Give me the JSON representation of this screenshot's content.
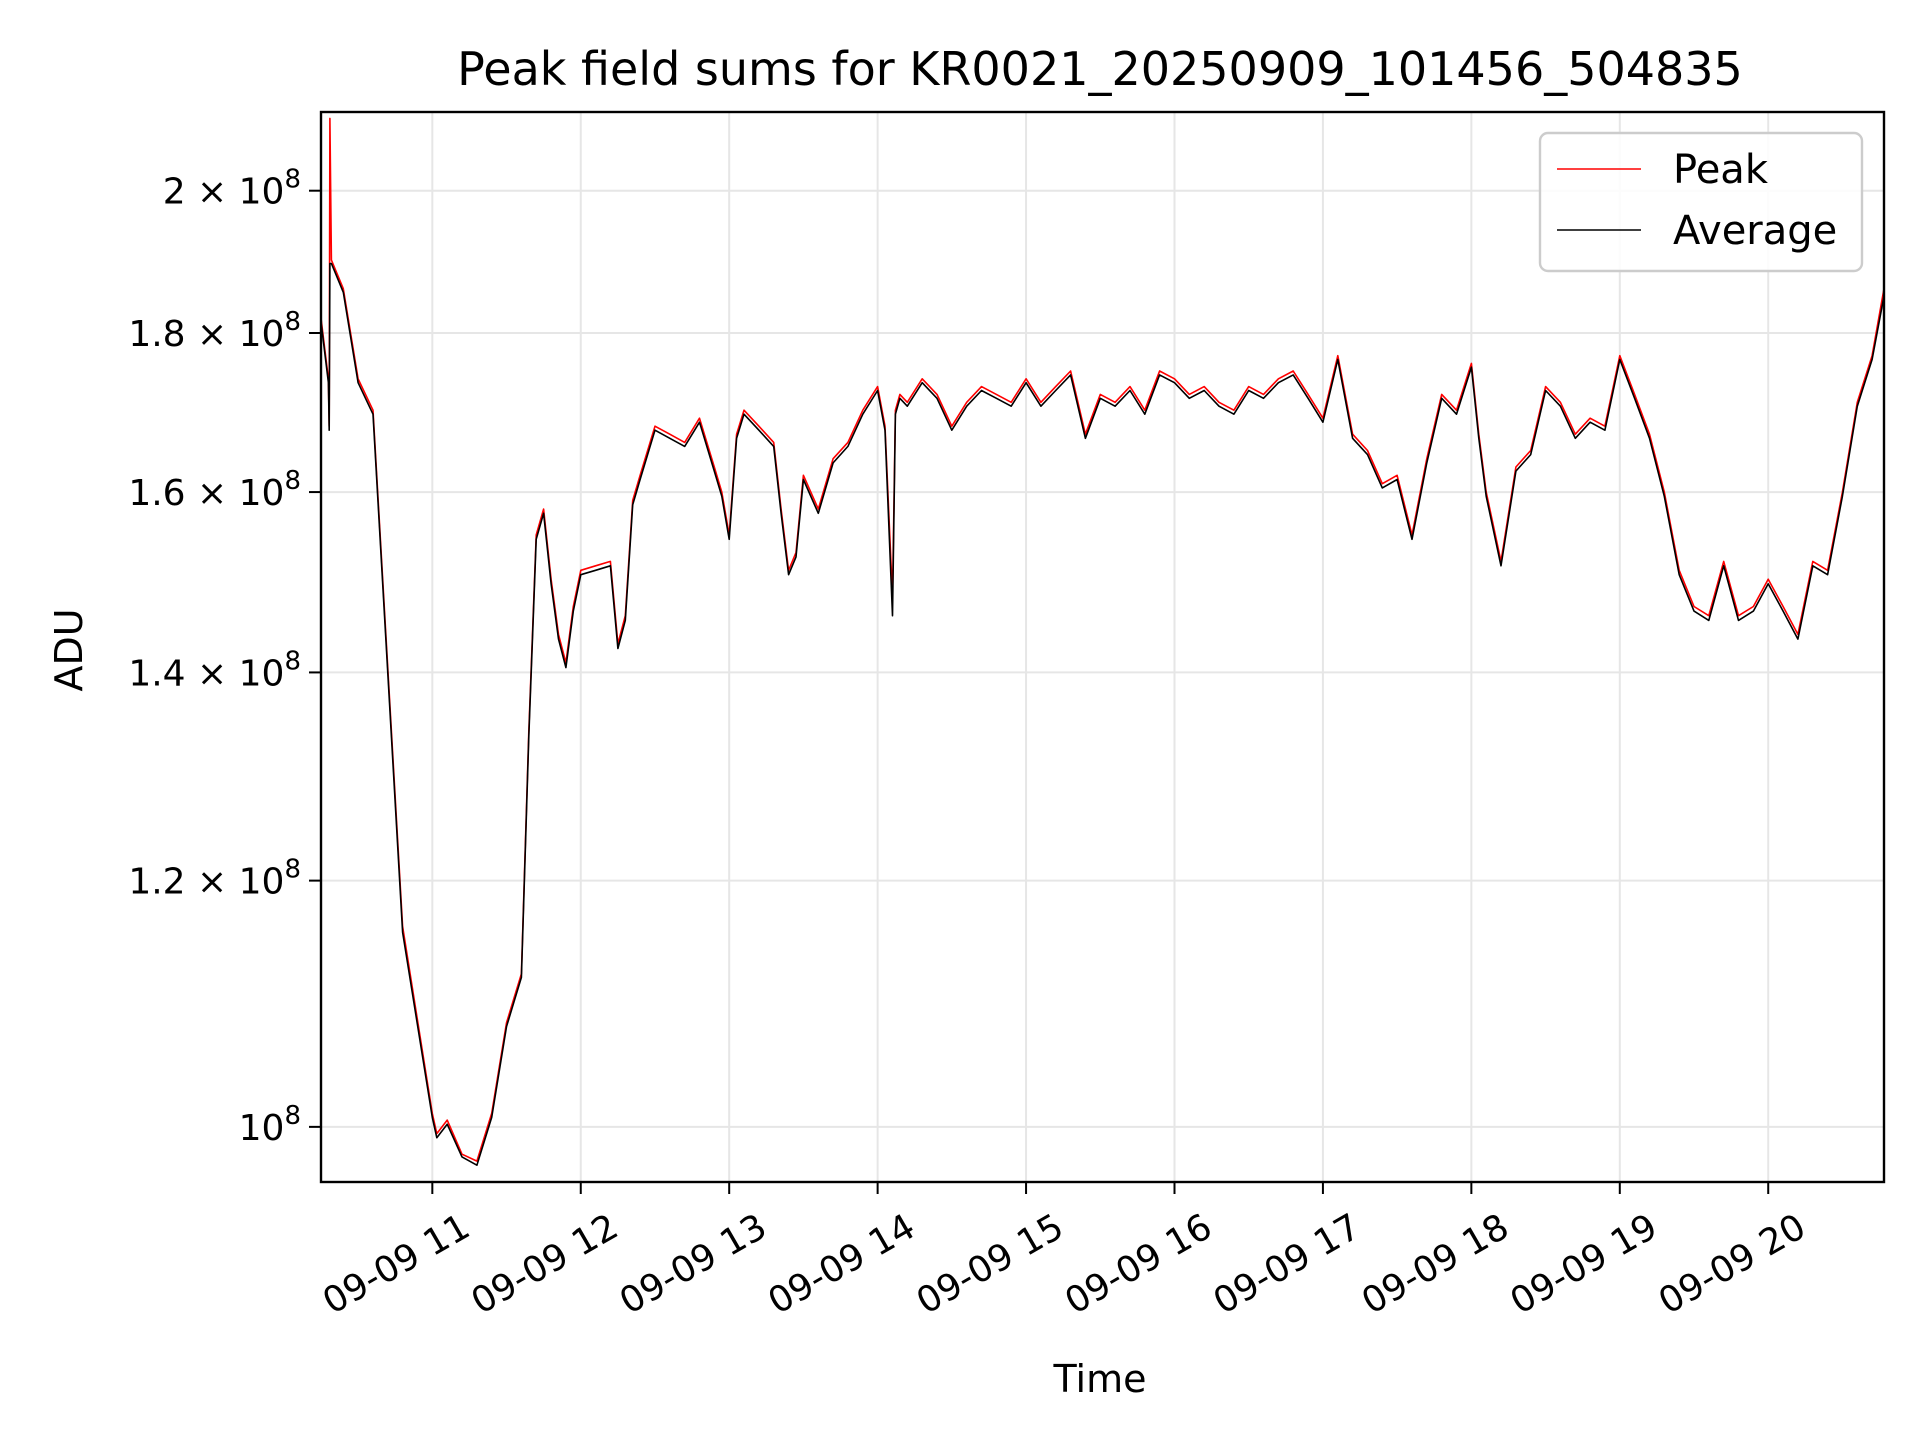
{
  "chart_data": {
    "type": "line",
    "title": "Peak field sums for KR0021_20250909_101456_504835",
    "xlabel": "Time",
    "ylabel": "ADU",
    "yscale": "log",
    "xlim": [
      10.25,
      20.78
    ],
    "ylim": [
      96000000,
      212000000
    ],
    "grid": true,
    "legend_position": "top-right",
    "x_ticks": [
      {
        "value": 11,
        "label": "09-09 11"
      },
      {
        "value": 12,
        "label": "09-09 12"
      },
      {
        "value": 13,
        "label": "09-09 13"
      },
      {
        "value": 14,
        "label": "09-09 14"
      },
      {
        "value": 15,
        "label": "09-09 15"
      },
      {
        "value": 16,
        "label": "09-09 16"
      },
      {
        "value": 17,
        "label": "09-09 17"
      },
      {
        "value": 18,
        "label": "09-09 18"
      },
      {
        "value": 19,
        "label": "09-09 19"
      },
      {
        "value": 20,
        "label": "09-09 20"
      }
    ],
    "y_ticks": [
      {
        "value": 100000000,
        "base": "10",
        "exp": "8"
      },
      {
        "value": 120000000,
        "base": "1.2 × 10",
        "exp": "8"
      },
      {
        "value": 140000000,
        "base": "1.4 × 10",
        "exp": "8"
      },
      {
        "value": 160000000,
        "base": "1.6 × 10",
        "exp": "8"
      },
      {
        "value": 180000000,
        "base": "1.8 × 10",
        "exp": "8"
      },
      {
        "value": 200000000,
        "base": "2 × 10",
        "exp": "8"
      }
    ],
    "series": [
      {
        "name": "Peak",
        "color": "#ff0000",
        "x": [
          10.25,
          10.3,
          10.305,
          10.31,
          10.32,
          10.4,
          10.5,
          10.6,
          10.8,
          11.0,
          11.03,
          11.1,
          11.2,
          11.3,
          11.4,
          11.5,
          11.55,
          11.6,
          11.65,
          11.7,
          11.75,
          11.8,
          11.85,
          11.9,
          11.95,
          12.0,
          12.1,
          12.2,
          12.25,
          12.3,
          12.35,
          12.4,
          12.5,
          12.6,
          12.7,
          12.8,
          12.9,
          12.95,
          13.0,
          13.05,
          13.1,
          13.2,
          13.3,
          13.35,
          13.4,
          13.45,
          13.5,
          13.6,
          13.7,
          13.8,
          13.9,
          14.0,
          14.05,
          14.1,
          14.12,
          14.15,
          14.2,
          14.3,
          14.4,
          14.5,
          14.6,
          14.7,
          14.8,
          14.9,
          15.0,
          15.1,
          15.2,
          15.3,
          15.4,
          15.5,
          15.6,
          15.7,
          15.8,
          15.9,
          16.0,
          16.1,
          16.2,
          16.3,
          16.4,
          16.5,
          16.6,
          16.7,
          16.8,
          16.9,
          17.0,
          17.1,
          17.2,
          17.3,
          17.4,
          17.5,
          17.6,
          17.7,
          17.8,
          17.9,
          18.0,
          18.05,
          18.1,
          18.2,
          18.3,
          18.4,
          18.5,
          18.6,
          18.7,
          18.8,
          18.9,
          19.0,
          19.1,
          19.2,
          19.3,
          19.4,
          19.5,
          19.6,
          19.7,
          19.8,
          19.9,
          20.0,
          20.1,
          20.2,
          20.3,
          20.4,
          20.5,
          20.6,
          20.7,
          20.78
        ],
        "y": [
          182000000,
          174000000,
          168000000,
          211000000,
          190000000,
          186000000,
          174000000,
          170000000,
          116000000,
          101000000,
          99500000,
          100500000,
          98000000,
          97500000,
          101000000,
          108000000,
          110000000,
          112000000,
          134000000,
          155000000,
          158000000,
          150000000,
          144000000,
          141000000,
          147000000,
          151000000,
          151500000,
          152000000,
          143000000,
          146000000,
          159000000,
          162000000,
          168000000,
          167000000,
          166000000,
          169000000,
          163000000,
          160000000,
          155000000,
          167000000,
          170000000,
          168000000,
          166000000,
          158000000,
          151000000,
          153000000,
          162000000,
          158000000,
          164000000,
          166000000,
          170000000,
          173000000,
          168000000,
          148000000,
          170000000,
          172000000,
          171000000,
          174000000,
          172000000,
          168000000,
          171000000,
          173000000,
          172000000,
          171000000,
          174000000,
          171000000,
          173000000,
          175000000,
          167000000,
          172000000,
          171000000,
          173000000,
          170000000,
          175000000,
          174000000,
          172000000,
          173000000,
          171000000,
          170000000,
          173000000,
          172000000,
          174000000,
          175000000,
          172000000,
          169000000,
          177000000,
          167000000,
          165000000,
          161000000,
          162000000,
          155000000,
          164000000,
          172000000,
          170000000,
          176000000,
          167000000,
          160000000,
          152000000,
          163000000,
          165000000,
          173000000,
          171000000,
          167000000,
          169000000,
          168000000,
          177000000,
          172000000,
          167000000,
          160000000,
          151000000,
          147000000,
          146000000,
          152000000,
          146000000,
          147000000,
          150000000,
          147000000,
          144000000,
          152000000,
          151000000,
          160000000,
          171000000,
          177000000,
          186000000
        ]
      },
      {
        "name": "Average",
        "color": "#000000",
        "x": [
          10.25,
          10.3,
          10.305,
          10.31,
          10.32,
          10.4,
          10.5,
          10.6,
          10.8,
          11.0,
          11.03,
          11.1,
          11.2,
          11.3,
          11.4,
          11.5,
          11.55,
          11.6,
          11.65,
          11.7,
          11.75,
          11.8,
          11.85,
          11.9,
          11.95,
          12.0,
          12.1,
          12.2,
          12.25,
          12.3,
          12.35,
          12.4,
          12.5,
          12.6,
          12.7,
          12.8,
          12.9,
          12.95,
          13.0,
          13.05,
          13.1,
          13.2,
          13.3,
          13.35,
          13.4,
          13.45,
          13.5,
          13.6,
          13.7,
          13.8,
          13.9,
          14.0,
          14.05,
          14.1,
          14.12,
          14.15,
          14.2,
          14.3,
          14.4,
          14.5,
          14.6,
          14.7,
          14.8,
          14.9,
          15.0,
          15.1,
          15.2,
          15.3,
          15.4,
          15.5,
          15.6,
          15.7,
          15.8,
          15.9,
          16.0,
          16.1,
          16.2,
          16.3,
          16.4,
          16.5,
          16.6,
          16.7,
          16.8,
          16.9,
          17.0,
          17.1,
          17.2,
          17.3,
          17.4,
          17.5,
          17.6,
          17.7,
          17.8,
          17.9,
          18.0,
          18.05,
          18.1,
          18.2,
          18.3,
          18.4,
          18.5,
          18.6,
          18.7,
          18.8,
          18.9,
          19.0,
          19.1,
          19.2,
          19.3,
          19.4,
          19.5,
          19.6,
          19.7,
          19.8,
          19.9,
          20.0,
          20.1,
          20.2,
          20.3,
          20.4,
          20.5,
          20.6,
          20.7,
          20.78
        ],
        "y": [
          181500000,
          173500000,
          167500000,
          189500000,
          189500000,
          185500000,
          173500000,
          169500000,
          115500000,
          100700000,
          99200000,
          100200000,
          97800000,
          97200000,
          100700000,
          107700000,
          109700000,
          111700000,
          133500000,
          154500000,
          157500000,
          149500000,
          143500000,
          140500000,
          146500000,
          150500000,
          151000000,
          151500000,
          142500000,
          145500000,
          158500000,
          161500000,
          167500000,
          166500000,
          165500000,
          168500000,
          162500000,
          159500000,
          154500000,
          166500000,
          169500000,
          167500000,
          165500000,
          157500000,
          150500000,
          152500000,
          161500000,
          157500000,
          163500000,
          165500000,
          169500000,
          172500000,
          167500000,
          146000000,
          169500000,
          171500000,
          170500000,
          173500000,
          171500000,
          167500000,
          170500000,
          172500000,
          171500000,
          170500000,
          173500000,
          170500000,
          172500000,
          174500000,
          166500000,
          171500000,
          170500000,
          172500000,
          169500000,
          174500000,
          173500000,
          171500000,
          172500000,
          170500000,
          169500000,
          172500000,
          171500000,
          173500000,
          174500000,
          171500000,
          168500000,
          176500000,
          166500000,
          164500000,
          160500000,
          161500000,
          154500000,
          163500000,
          171500000,
          169500000,
          175500000,
          166500000,
          159500000,
          151500000,
          162500000,
          164500000,
          172500000,
          170500000,
          166500000,
          168500000,
          167500000,
          176500000,
          171500000,
          166500000,
          159500000,
          150500000,
          146500000,
          145500000,
          151500000,
          145500000,
          146500000,
          149500000,
          146500000,
          143500000,
          151500000,
          150500000,
          159500000,
          170500000,
          176500000,
          185000000
        ]
      }
    ]
  }
}
